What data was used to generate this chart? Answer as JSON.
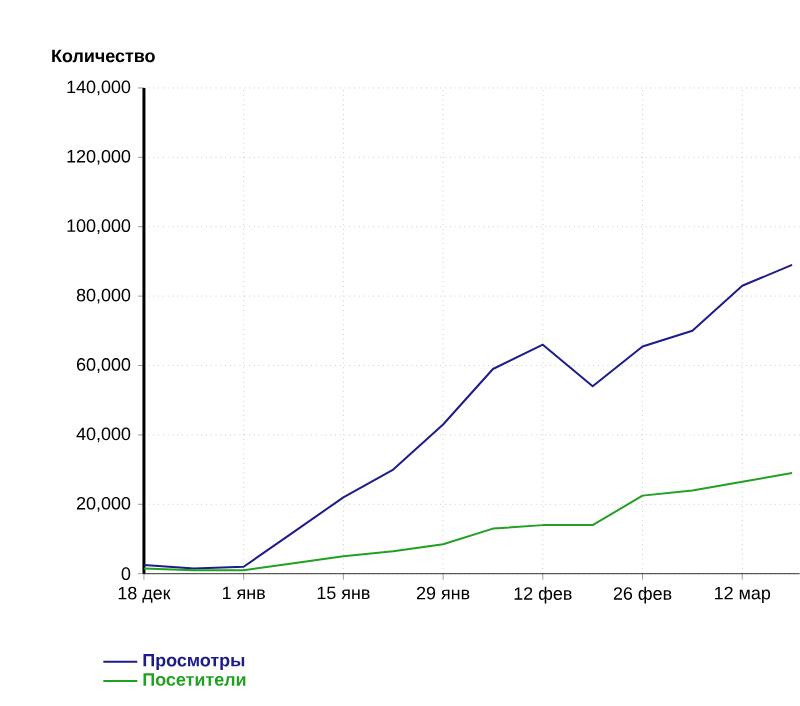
{
  "chart_data": {
    "type": "line",
    "ylabel": "Количество",
    "categories": [
      "18 дек",
      null,
      "1 янв",
      null,
      "15 янв",
      null,
      "29 янв",
      null,
      "12 фев",
      null,
      "26 фев",
      null,
      "12 мар",
      null
    ],
    "series": [
      {
        "name": "Просмотры",
        "color": "#1c1c8a",
        "values": [
          2500,
          1500,
          2000,
          12000,
          22000,
          30000,
          43000,
          59000,
          66000,
          54000,
          65500,
          70000,
          83000,
          89000
        ]
      },
      {
        "name": "Посетители",
        "color": "#22a022",
        "values": [
          1500,
          1000,
          1000,
          3000,
          5000,
          6500,
          8500,
          13000,
          14000,
          14000,
          22500,
          24000,
          26500,
          29000
        ]
      }
    ],
    "ylim": [
      0,
      140000
    ],
    "yticks": [
      0,
      {
        "value": 20000,
        "label": "20,000"
      },
      {
        "value": 40000,
        "label": "40,000"
      },
      {
        "value": 60000,
        "label": "60,000"
      },
      {
        "value": 80000,
        "label": "80,000"
      },
      {
        "value": 100000,
        "label": "100,000"
      },
      {
        "value": 120000,
        "label": "120,000"
      },
      {
        "value": 140000,
        "label": "140,000"
      }
    ],
    "grid": true,
    "legend": "bottom left",
    "marker": "none",
    "line_style": "solid"
  }
}
